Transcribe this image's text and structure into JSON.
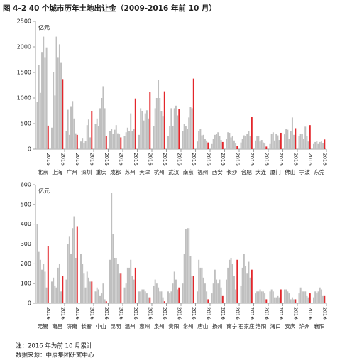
{
  "title": "图 4-2 40 个城市历年土地出让金（2009-2016 年前 10 月）",
  "notes": [
    "注：2016 年为前 10 月累计",
    "数据来源：中原集团研究中心"
  ],
  "chart_data": [
    {
      "type": "bar",
      "y_label": "亿元",
      "ylim": [
        0,
        2500
      ],
      "yticks": [
        0,
        500,
        1000,
        1500,
        2000,
        2500
      ],
      "categories": [
        "北京",
        "上海",
        "广州",
        "深圳",
        "重庆",
        "成都",
        "苏州",
        "天津",
        "杭州",
        "武汉",
        "南京",
        "福州",
        "西安",
        "长沙",
        "合肥",
        "大连",
        "厦门",
        "佛山",
        "宁波",
        "东莞"
      ],
      "series": [
        {
          "color": "#bfbfbf",
          "values": [
            930,
            420,
            360,
            150,
            500,
            350,
            250,
            280,
            450,
            250,
            350,
            150,
            100,
            200,
            130,
            170,
            100,
            290,
            250,
            100
          ]
        },
        {
          "color": "#bfbfbf",
          "values": [
            1640,
            1500,
            770,
            220,
            600,
            400,
            330,
            800,
            800,
            450,
            500,
            350,
            200,
            330,
            200,
            260,
            300,
            400,
            300,
            140
          ]
        },
        {
          "color": "#bfbfbf",
          "values": [
            1100,
            1050,
            280,
            120,
            450,
            300,
            420,
            750,
            1000,
            800,
            450,
            400,
            280,
            320,
            270,
            250,
            330,
            380,
            300,
            160
          ]
        },
        {
          "color": "#bfbfbf",
          "values": [
            1900,
            2200,
            840,
            160,
            800,
            380,
            350,
            560,
            1350,
            450,
            400,
            270,
            300,
            230,
            250,
            150,
            170,
            200,
            200,
            100
          ]
        },
        {
          "color": "#bfbfbf",
          "values": [
            2200,
            1800,
            940,
            470,
            1000,
            470,
            700,
            700,
            1000,
            800,
            620,
            280,
            330,
            250,
            300,
            180,
            300,
            350,
            440,
            140
          ]
        },
        {
          "color": "#bfbfbf",
          "values": [
            1800,
            2050,
            600,
            580,
            1230,
            310,
            350,
            760,
            750,
            850,
            830,
            200,
            250,
            170,
            350,
            130,
            270,
            620,
            250,
            150
          ]
        },
        {
          "color": "#bfbfbf",
          "values": [
            1990,
            1700,
            310,
            230,
            800,
            290,
            400,
            600,
            650,
            660,
            800,
            170,
            180,
            110,
            250,
            110,
            180,
            280,
            150,
            120
          ]
        },
        {
          "name": "2016",
          "color": "#e3262b",
          "values": [
            460,
            1370,
            280,
            750,
            260,
            230,
            990,
            1120,
            1130,
            790,
            1380,
            130,
            140,
            60,
            630,
            50,
            320,
            410,
            470,
            190
          ]
        }
      ]
    },
    {
      "type": "bar",
      "y_label": "亿元",
      "ylim": [
        0,
        600
      ],
      "yticks": [
        0,
        100,
        200,
        300,
        400,
        500,
        600
      ],
      "categories": [
        "无锡",
        "南昌",
        "济南",
        "长春",
        "中山",
        "昆明",
        "温州",
        "惠州",
        "泉州",
        "贵阳",
        "常州",
        "唐山",
        "扬州",
        "南宁",
        "石家庄",
        "洛阳",
        "海口",
        "安庆",
        "泸州",
        "襄阳"
      ],
      "series": [
        {
          "color": "#bfbfbf",
          "values": [
            400,
            110,
            120,
            250,
            60,
            220,
            80,
            60,
            90,
            60,
            100,
            60,
            50,
            120,
            90,
            50,
            60,
            70,
            50,
            30
          ]
        },
        {
          "color": "#bfbfbf",
          "values": [
            260,
            130,
            300,
            200,
            80,
            560,
            100,
            60,
            120,
            50,
            250,
            220,
            100,
            180,
            180,
            60,
            70,
            70,
            80,
            60
          ]
        },
        {
          "color": "#bfbfbf",
          "values": [
            220,
            90,
            340,
            150,
            70,
            350,
            180,
            70,
            100,
            60,
            375,
            180,
            170,
            220,
            250,
            60,
            60,
            60,
            60,
            50
          ]
        },
        {
          "color": "#bfbfbf",
          "values": [
            170,
            80,
            250,
            80,
            40,
            230,
            180,
            70,
            80,
            100,
            380,
            180,
            120,
            230,
            190,
            70,
            30,
            50,
            60,
            60
          ]
        },
        {
          "color": "#bfbfbf",
          "values": [
            200,
            180,
            380,
            160,
            50,
            230,
            220,
            60,
            60,
            160,
            380,
            130,
            100,
            200,
            150,
            60,
            30,
            20,
            60,
            80
          ]
        },
        {
          "color": "#bfbfbf",
          "values": [
            160,
            200,
            440,
            130,
            100,
            200,
            140,
            50,
            60,
            120,
            240,
            100,
            120,
            140,
            210,
            60,
            40,
            30,
            40,
            70
          ]
        },
        {
          "color": "#bfbfbf",
          "values": [
            80,
            60,
            230,
            110,
            20,
            150,
            120,
            30,
            30,
            70,
            140,
            60,
            80,
            70,
            130,
            50,
            30,
            20,
            30,
            40
          ]
        },
        {
          "name": "2016",
          "color": "#e3262b",
          "values": [
            290,
            140,
            390,
            110,
            10,
            150,
            180,
            30,
            10,
            80,
            140,
            20,
            40,
            220,
            170,
            20,
            70,
            20,
            50,
            40
          ]
        }
      ]
    }
  ]
}
